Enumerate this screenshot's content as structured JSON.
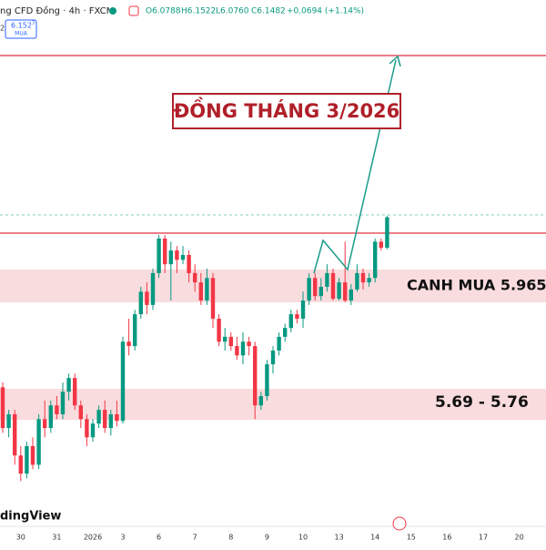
{
  "header": {
    "symbol": "ng CFD Đồng · 4h · FXCM",
    "open": "O6.0788",
    "high": "H6.1522",
    "low": "L6.0760",
    "close": "C6.1482",
    "change": "+0.0694 (+1.14%)",
    "side_digit": "2",
    "badge_price": "6.152",
    "badge_superscript": "3",
    "badge_label": "MUA"
  },
  "logo": "dingView",
  "chart_data": {
    "type": "candlestick",
    "title": "ĐỒNG THÁNG 3/2026",
    "annotations": [
      "CANH MUA 5.965",
      "5.69 - 5.76"
    ],
    "up_color": "#089981",
    "down_color": "#f23645",
    "ylim": [
      5.456,
      6.639
    ],
    "categories": [
      null,
      null,
      null,
      "30",
      null,
      null,
      null,
      null,
      null,
      "31",
      null,
      null,
      null,
      null,
      null,
      "2026",
      null,
      null,
      null,
      null,
      "3",
      null,
      null,
      null,
      null,
      null,
      "6",
      null,
      null,
      null,
      null,
      null,
      "7",
      null,
      null,
      null,
      null,
      null,
      "8",
      null,
      null,
      null,
      null,
      null,
      "9",
      null,
      null,
      null,
      null,
      null,
      "10",
      null,
      null,
      null,
      null,
      null,
      "13",
      null,
      null,
      null,
      null,
      null,
      "14",
      null,
      null,
      null,
      null,
      null,
      "15",
      null,
      null,
      null,
      null,
      null,
      "16",
      null,
      null,
      null,
      null,
      null,
      "17",
      null,
      null,
      null,
      null,
      null,
      "20",
      null,
      null,
      null,
      null
    ],
    "open": [
      5.764,
      5.672,
      5.703,
      5.61,
      5.569,
      5.631,
      5.589,
      5.692,
      5.672,
      5.723,
      5.703,
      5.754,
      5.785,
      5.723,
      5.692,
      5.651,
      5.682,
      5.713,
      5.672,
      5.703,
      5.688,
      5.867,
      5.857,
      5.929,
      5.98,
      5.95,
      6.022,
      6.1,
      6.042,
      6.073,
      6.052,
      6.063,
      6.022,
      6.001,
      5.96,
      6.011,
      5.919,
      5.867,
      5.878,
      5.857,
      5.836,
      5.867,
      5.857,
      5.723,
      5.744,
      5.816,
      5.847,
      5.878,
      5.898,
      5.929,
      5.919,
      5.96,
      6.011,
      5.97,
      5.991,
      6.022,
      5.964,
      6.001,
      5.96,
      5.985,
      6.022,
      6.001,
      6.011,
      6.093,
      6.079,
      null,
      null,
      null,
      null,
      null,
      null,
      null,
      null,
      null,
      null,
      null,
      null,
      null,
      null,
      null,
      null,
      null,
      null,
      null,
      null,
      null,
      null,
      null,
      null,
      null,
      null
    ],
    "high": [
      5.775,
      5.713,
      5.713,
      5.631,
      5.641,
      5.651,
      5.703,
      5.734,
      5.734,
      5.744,
      5.775,
      5.795,
      5.795,
      5.734,
      5.703,
      5.692,
      5.723,
      5.734,
      5.713,
      5.734,
      5.878,
      5.919,
      5.939,
      5.991,
      6.001,
      6.032,
      6.108,
      6.108,
      6.093,
      6.083,
      6.083,
      6.073,
      6.042,
      6.022,
      6.032,
      6.022,
      5.929,
      5.898,
      5.888,
      5.878,
      5.888,
      5.878,
      5.867,
      5.754,
      5.826,
      5.857,
      5.888,
      5.908,
      5.939,
      5.939,
      5.98,
      6.022,
      6.022,
      6.011,
      6.042,
      6.032,
      6.011,
      6.093,
      5.997,
      6.042,
      6.032,
      6.022,
      6.1,
      6.1,
      6.152,
      null,
      null,
      null,
      null,
      null,
      null,
      null,
      null,
      null,
      null,
      null,
      null,
      null,
      null,
      null,
      null,
      null,
      null,
      null,
      null,
      null,
      null,
      null,
      null,
      null,
      null
    ],
    "low": [
      5.661,
      5.651,
      5.589,
      5.552,
      5.558,
      5.579,
      5.579,
      5.651,
      5.661,
      5.692,
      5.692,
      5.734,
      5.713,
      5.672,
      5.631,
      5.641,
      5.672,
      5.661,
      5.655,
      5.676,
      5.682,
      5.836,
      5.847,
      5.919,
      5.929,
      5.939,
      6.011,
      6.022,
      5.96,
      6.022,
      6.042,
      6.001,
      5.98,
      5.95,
      5.95,
      5.898,
      5.857,
      5.847,
      5.847,
      5.826,
      5.816,
      5.836,
      5.692,
      5.713,
      5.734,
      5.795,
      5.836,
      5.867,
      5.888,
      5.908,
      5.898,
      5.95,
      5.96,
      5.96,
      5.98,
      5.96,
      5.96,
      5.956,
      5.95,
      5.98,
      5.985,
      5.991,
      6.001,
      6.073,
      6.076,
      null,
      null,
      null,
      null,
      null,
      null,
      null,
      null,
      null,
      null,
      null,
      null,
      null,
      null,
      null,
      null,
      null,
      null,
      null,
      null,
      null,
      null,
      null,
      null,
      null,
      null
    ],
    "close": [
      5.672,
      5.703,
      5.61,
      5.569,
      5.631,
      5.589,
      5.692,
      5.672,
      5.723,
      5.703,
      5.754,
      5.785,
      5.723,
      5.692,
      5.651,
      5.682,
      5.713,
      5.672,
      5.703,
      5.688,
      5.867,
      5.857,
      5.929,
      5.98,
      5.95,
      6.022,
      6.1,
      6.042,
      6.073,
      6.052,
      6.063,
      6.022,
      6.001,
      5.96,
      6.011,
      5.919,
      5.867,
      5.878,
      5.857,
      5.836,
      5.867,
      5.857,
      5.723,
      5.744,
      5.816,
      5.847,
      5.878,
      5.898,
      5.929,
      5.919,
      5.96,
      6.011,
      5.97,
      5.991,
      6.022,
      5.964,
      6.001,
      5.96,
      5.985,
      6.022,
      6.001,
      6.011,
      6.093,
      6.079,
      6.148,
      null,
      null,
      null,
      null,
      null,
      null,
      null,
      null,
      null,
      null,
      null,
      null,
      null,
      null,
      null,
      null,
      null,
      null,
      null,
      null,
      null,
      null,
      null,
      null,
      null,
      null
    ]
  }
}
